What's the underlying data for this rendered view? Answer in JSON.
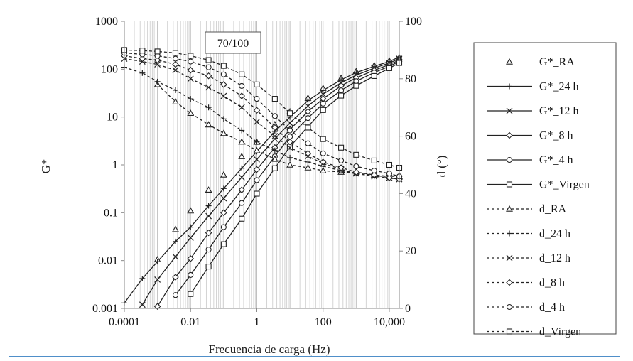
{
  "chart_data": {
    "type": "line",
    "title": "70/100",
    "xlabel": "Frecuencia de carga (Hz)",
    "ylabel_left": "G*",
    "ylabel_right": "d (°)",
    "x_scale": "log",
    "xlim": [
      0.0001,
      20000
    ],
    "ylim_left": [
      0.001,
      1000
    ],
    "ylim_right": [
      0,
      100
    ],
    "x_ticks": [
      "0.0001",
      "0.01",
      "1",
      "100",
      "10,000"
    ],
    "y_left_ticks": [
      "1000",
      "100",
      "10",
      "1",
      "0.1",
      "0.01",
      "0.001"
    ],
    "y_right_ticks": [
      "100",
      "80",
      "60",
      "40",
      "20",
      "0"
    ],
    "grid": "vertical minor lines on x",
    "legend_position": "right",
    "series": [
      {
        "name": "G*_RA",
        "axis": "left",
        "marker": "triangle",
        "x": [
          0.001,
          0.0035,
          0.01,
          0.035,
          0.1,
          0.35,
          1,
          3.5,
          10,
          35,
          100,
          350,
          1000,
          3500,
          10000,
          20000
        ],
        "values": [
          0.0105,
          0.045,
          0.11,
          0.3,
          0.62,
          1.5,
          3.0,
          7.0,
          13,
          25,
          40,
          65,
          90,
          120,
          150,
          175
        ]
      },
      {
        "name": "G*_24 h",
        "axis": "left",
        "marker": "plus",
        "x": [
          0.0001,
          0.00035,
          0.001,
          0.0035,
          0.01,
          0.035,
          0.1,
          0.35,
          1,
          3.5,
          10,
          35,
          100,
          350,
          1000,
          3500,
          10000,
          20000
        ],
        "values": [
          0.0013,
          0.0042,
          0.0095,
          0.025,
          0.05,
          0.14,
          0.32,
          0.85,
          1.9,
          5.0,
          10,
          22,
          36,
          60,
          85,
          115,
          145,
          180
        ]
      },
      {
        "name": "G*_12 h",
        "axis": "left",
        "marker": "x",
        "x": [
          0.00035,
          0.001,
          0.0035,
          0.01,
          0.035,
          0.1,
          0.35,
          1,
          3.5,
          10,
          35,
          100,
          350,
          1000,
          3500,
          10000,
          20000
        ],
        "values": [
          0.0012,
          0.004,
          0.012,
          0.03,
          0.085,
          0.2,
          0.55,
          1.3,
          3.5,
          7.5,
          17,
          30,
          52,
          75,
          105,
          135,
          165
        ]
      },
      {
        "name": "G*_8 h",
        "axis": "left",
        "marker": "diamond",
        "x": [
          0.001,
          0.0035,
          0.01,
          0.035,
          0.1,
          0.35,
          1,
          3.5,
          10,
          35,
          100,
          350,
          1000,
          3500,
          10000,
          20000
        ],
        "values": [
          0.0011,
          0.0045,
          0.011,
          0.038,
          0.1,
          0.3,
          0.8,
          2.3,
          5.5,
          13,
          24,
          45,
          66,
          95,
          125,
          155
        ]
      },
      {
        "name": "G*_4 h",
        "axis": "left",
        "marker": "circle",
        "x": [
          0.0035,
          0.01,
          0.035,
          0.1,
          0.35,
          1,
          3.5,
          10,
          35,
          100,
          350,
          1000,
          3500,
          10000,
          20000
        ],
        "values": [
          0.0019,
          0.005,
          0.017,
          0.05,
          0.16,
          0.48,
          1.5,
          3.9,
          9.5,
          19,
          36,
          56,
          85,
          115,
          145
        ]
      },
      {
        "name": "G*_Virgen",
        "axis": "left",
        "marker": "square",
        "x": [
          0.01,
          0.035,
          0.1,
          0.35,
          1,
          3.5,
          10,
          35,
          100,
          350,
          1000,
          3500,
          10000,
          20000
        ],
        "values": [
          0.002,
          0.0075,
          0.022,
          0.075,
          0.25,
          0.85,
          2.4,
          6.3,
          14,
          28,
          45,
          72,
          105,
          135
        ]
      },
      {
        "name": "d_RA",
        "axis": "right",
        "marker": "triangle",
        "x": [
          0.001,
          0.0035,
          0.01,
          0.035,
          0.1,
          0.35,
          1,
          3.5,
          10,
          35,
          100,
          350,
          1000,
          3500,
          10000,
          20000
        ],
        "values": [
          78,
          72,
          68,
          64,
          61,
          58,
          55,
          52,
          50,
          49,
          48,
          47.5,
          47,
          46.5,
          46,
          46
        ]
      },
      {
        "name": "d_24 h",
        "axis": "right",
        "marker": "plus",
        "x": [
          0.0001,
          0.00035,
          0.001,
          0.0035,
          0.01,
          0.035,
          0.1,
          0.35,
          1,
          3.5,
          10,
          35,
          100,
          350,
          1000,
          3500,
          10000,
          20000
        ],
        "values": [
          84,
          82,
          79,
          76,
          73,
          70,
          66,
          62,
          58,
          55,
          52.5,
          51,
          49.5,
          48,
          47,
          46,
          45.5,
          45
        ]
      },
      {
        "name": "d_12 h",
        "axis": "right",
        "marker": "x",
        "x": [
          0.0001,
          0.00035,
          0.001,
          0.0035,
          0.01,
          0.035,
          0.1,
          0.35,
          1,
          3.5,
          10,
          35,
          100,
          350,
          1000,
          3500,
          10000,
          20000
        ],
        "values": [
          87,
          86,
          85,
          83,
          80,
          77,
          74,
          70,
          65,
          60,
          56,
          53,
          50.5,
          48.5,
          47,
          46,
          45.5,
          45
        ]
      },
      {
        "name": "d_8 h",
        "axis": "right",
        "marker": "diamond",
        "x": [
          0.0001,
          0.00035,
          0.001,
          0.0035,
          0.01,
          0.035,
          0.1,
          0.35,
          1,
          3.5,
          10,
          35,
          100,
          350,
          1000,
          3500,
          10000,
          20000
        ],
        "values": [
          88,
          87,
          86.5,
          85,
          83,
          81,
          78,
          74,
          69,
          63,
          58,
          54,
          51,
          49,
          47.5,
          46.5,
          45.5,
          45
        ]
      },
      {
        "name": "d_4 h",
        "axis": "right",
        "marker": "circle",
        "x": [
          0.0001,
          0.00035,
          0.001,
          0.0035,
          0.01,
          0.035,
          0.1,
          0.35,
          1,
          3.5,
          10,
          35,
          100,
          350,
          1000,
          3500,
          10000,
          20000
        ],
        "values": [
          89,
          88.5,
          88,
          87,
          86,
          84,
          81.5,
          77.5,
          73,
          67,
          62,
          57.5,
          54,
          51.5,
          49.5,
          48,
          47,
          46
        ]
      },
      {
        "name": "d_Virgen",
        "axis": "right",
        "marker": "square",
        "x": [
          0.0001,
          0.00035,
          0.001,
          0.0035,
          0.01,
          0.035,
          0.1,
          0.35,
          1,
          3.5,
          10,
          35,
          100,
          350,
          1000,
          3500,
          10000,
          20000
        ],
        "values": [
          90,
          89.8,
          89.5,
          89,
          88,
          86.5,
          84.5,
          81.5,
          78,
          73,
          68,
          63,
          59,
          56,
          53.5,
          51.5,
          50,
          49
        ]
      }
    ]
  }
}
